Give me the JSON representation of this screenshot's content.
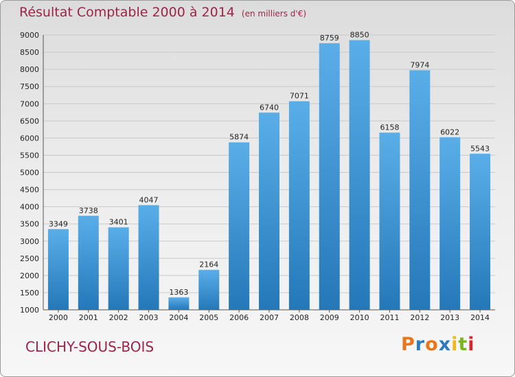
{
  "header": {
    "title": "Résultat Comptable 2000 à 2014",
    "subtitle": "(en milliers d'€)"
  },
  "footer": {
    "city": "CLICHY-SOUS-BOIS"
  },
  "logo": {
    "text": "Proxiti",
    "colors": [
      "#e8761c",
      "#2a7bbf",
      "#e8761c",
      "#2a7bbf",
      "#f2b61c",
      "#7ab51d",
      "#d9262b"
    ]
  },
  "chart_data": {
    "type": "bar",
    "title": "Résultat Comptable 2000 à 2014",
    "subtitle": "(en milliers d'€)",
    "categories": [
      "2000",
      "2001",
      "2002",
      "2003",
      "2004",
      "2005",
      "2006",
      "2007",
      "2008",
      "2009",
      "2010",
      "2011",
      "2012",
      "2013",
      "2014"
    ],
    "values": [
      3349,
      3738,
      3401,
      4047,
      1363,
      2164,
      5874,
      6740,
      7071,
      8759,
      8850,
      6158,
      7974,
      6022,
      5543
    ],
    "ylim": [
      1000,
      9000
    ],
    "yticks": [
      1000,
      1500,
      2000,
      2500,
      3000,
      3500,
      4000,
      4500,
      5000,
      5500,
      6000,
      6500,
      7000,
      7500,
      8000,
      8500,
      9000
    ],
    "grid": true,
    "bar_color_top": "#5aaee8",
    "bar_color_bottom": "#2478b8"
  }
}
